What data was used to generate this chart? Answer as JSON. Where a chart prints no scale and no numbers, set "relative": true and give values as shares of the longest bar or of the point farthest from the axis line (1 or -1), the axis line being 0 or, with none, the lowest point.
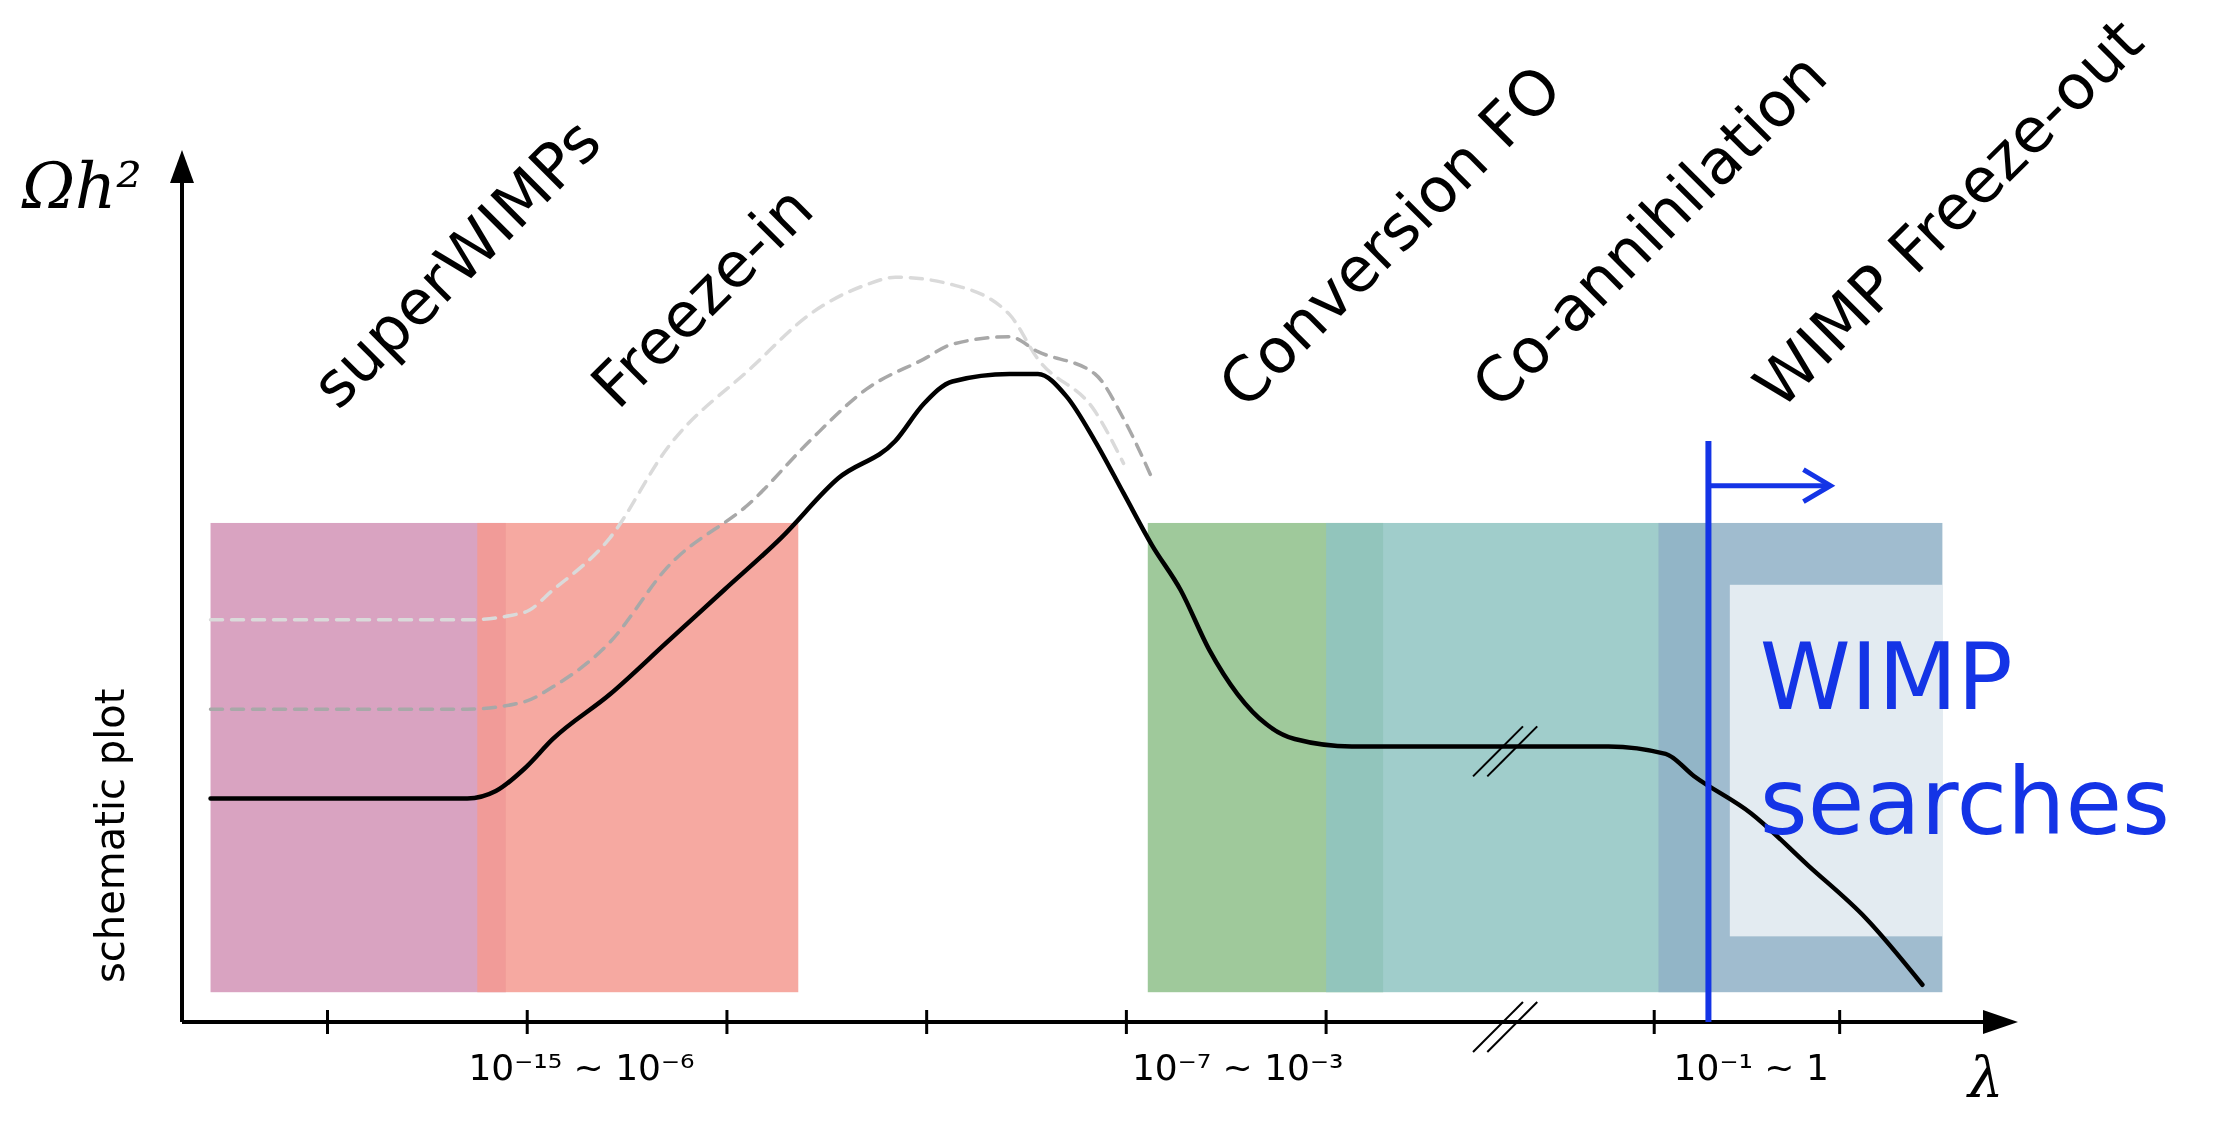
{
  "chart_data": {
    "type": "line",
    "relative": true,
    "xlabel": "λ",
    "ylabel": "Ωh²",
    "categories": [
      null,
      null,
      null,
      null,
      null,
      null,
      null,
      null,
      null,
      null,
      null,
      null,
      null,
      "10⁻¹⁵   ~   10⁻⁶",
      null,
      null,
      null,
      null,
      null,
      null,
      null,
      null,
      null,
      null,
      null,
      null,
      null,
      null,
      null,
      null,
      null,
      null,
      null,
      null,
      null,
      null,
      "10⁻⁷ ~ 10⁻³",
      null,
      null,
      null,
      null,
      null,
      null,
      null,
      null,
      null,
      null,
      null,
      null,
      null,
      null,
      null,
      null,
      null,
      "10⁻¹ ~ 1",
      null,
      null,
      null,
      null,
      null,
      null
    ],
    "series": [
      {
        "color": "#dadada",
        "line_style": "dashed",
        "values": [
          0.54,
          null,
          null,
          null,
          null,
          0.54,
          null,
          null,
          null,
          0.54,
          null,
          0.55,
          0.58,
          null,
          0.65,
          null,
          0.77,
          null,
          null,
          0.88,
          null,
          0.95,
          null,
          0.99,
          1.0,
          null,
          0.99,
          null,
          0.95,
          0.89,
          null,
          0.82,
          0.75,
          null,
          null,
          null,
          null,
          null,
          null,
          null,
          null,
          null,
          null,
          null,
          null,
          null,
          null,
          null,
          null,
          null,
          null,
          null,
          null,
          null,
          null,
          null,
          null,
          null,
          null,
          null,
          null
        ]
      },
      {
        "color": "#a8a8a8",
        "line_style": "dashed",
        "values": [
          0.42,
          null,
          null,
          null,
          null,
          0.42,
          null,
          null,
          null,
          0.42,
          null,
          0.43,
          0.45,
          null,
          0.51,
          null,
          0.61,
          null,
          null,
          0.7,
          null,
          0.78,
          null,
          0.85,
          null,
          0.89,
          0.91,
          null,
          0.92,
          0.9,
          null,
          0.87,
          0.81,
          0.73,
          null,
          null,
          null,
          null,
          null,
          null,
          null,
          null,
          null,
          null,
          null,
          null,
          null,
          null,
          null,
          null,
          null,
          null,
          null,
          null,
          null,
          null,
          null,
          null,
          null,
          null,
          null
        ]
      },
      {
        "color": "#000000",
        "line_style": "solid",
        "values": [
          0.3,
          null,
          null,
          0.3,
          null,
          null,
          0.3,
          null,
          null,
          0.3,
          0.31,
          0.34,
          0.38,
          null,
          0.44,
          null,
          0.51,
          null,
          0.58,
          null,
          0.65,
          null,
          0.73,
          null,
          0.78,
          0.83,
          0.86,
          null,
          0.87,
          0.87,
          0.84,
          0.78,
          0.71,
          0.64,
          0.58,
          0.5,
          0.44,
          0.4,
          0.38,
          null,
          0.37,
          null,
          0.37,
          null,
          null,
          0.37,
          null,
          null,
          0.37,
          0.37,
          null,
          0.36,
          0.33,
          null,
          0.28,
          null,
          0.21,
          null,
          0.14,
          null,
          0.05
        ]
      }
    ],
    "annotations": [
      "superWIMPs",
      "Freeze-in",
      "Conversion FO",
      "Co-annihilation",
      "WIMP Freeze-out",
      "schematic plot",
      "WIMP searches"
    ],
    "grid": false,
    "legend": false
  }
}
